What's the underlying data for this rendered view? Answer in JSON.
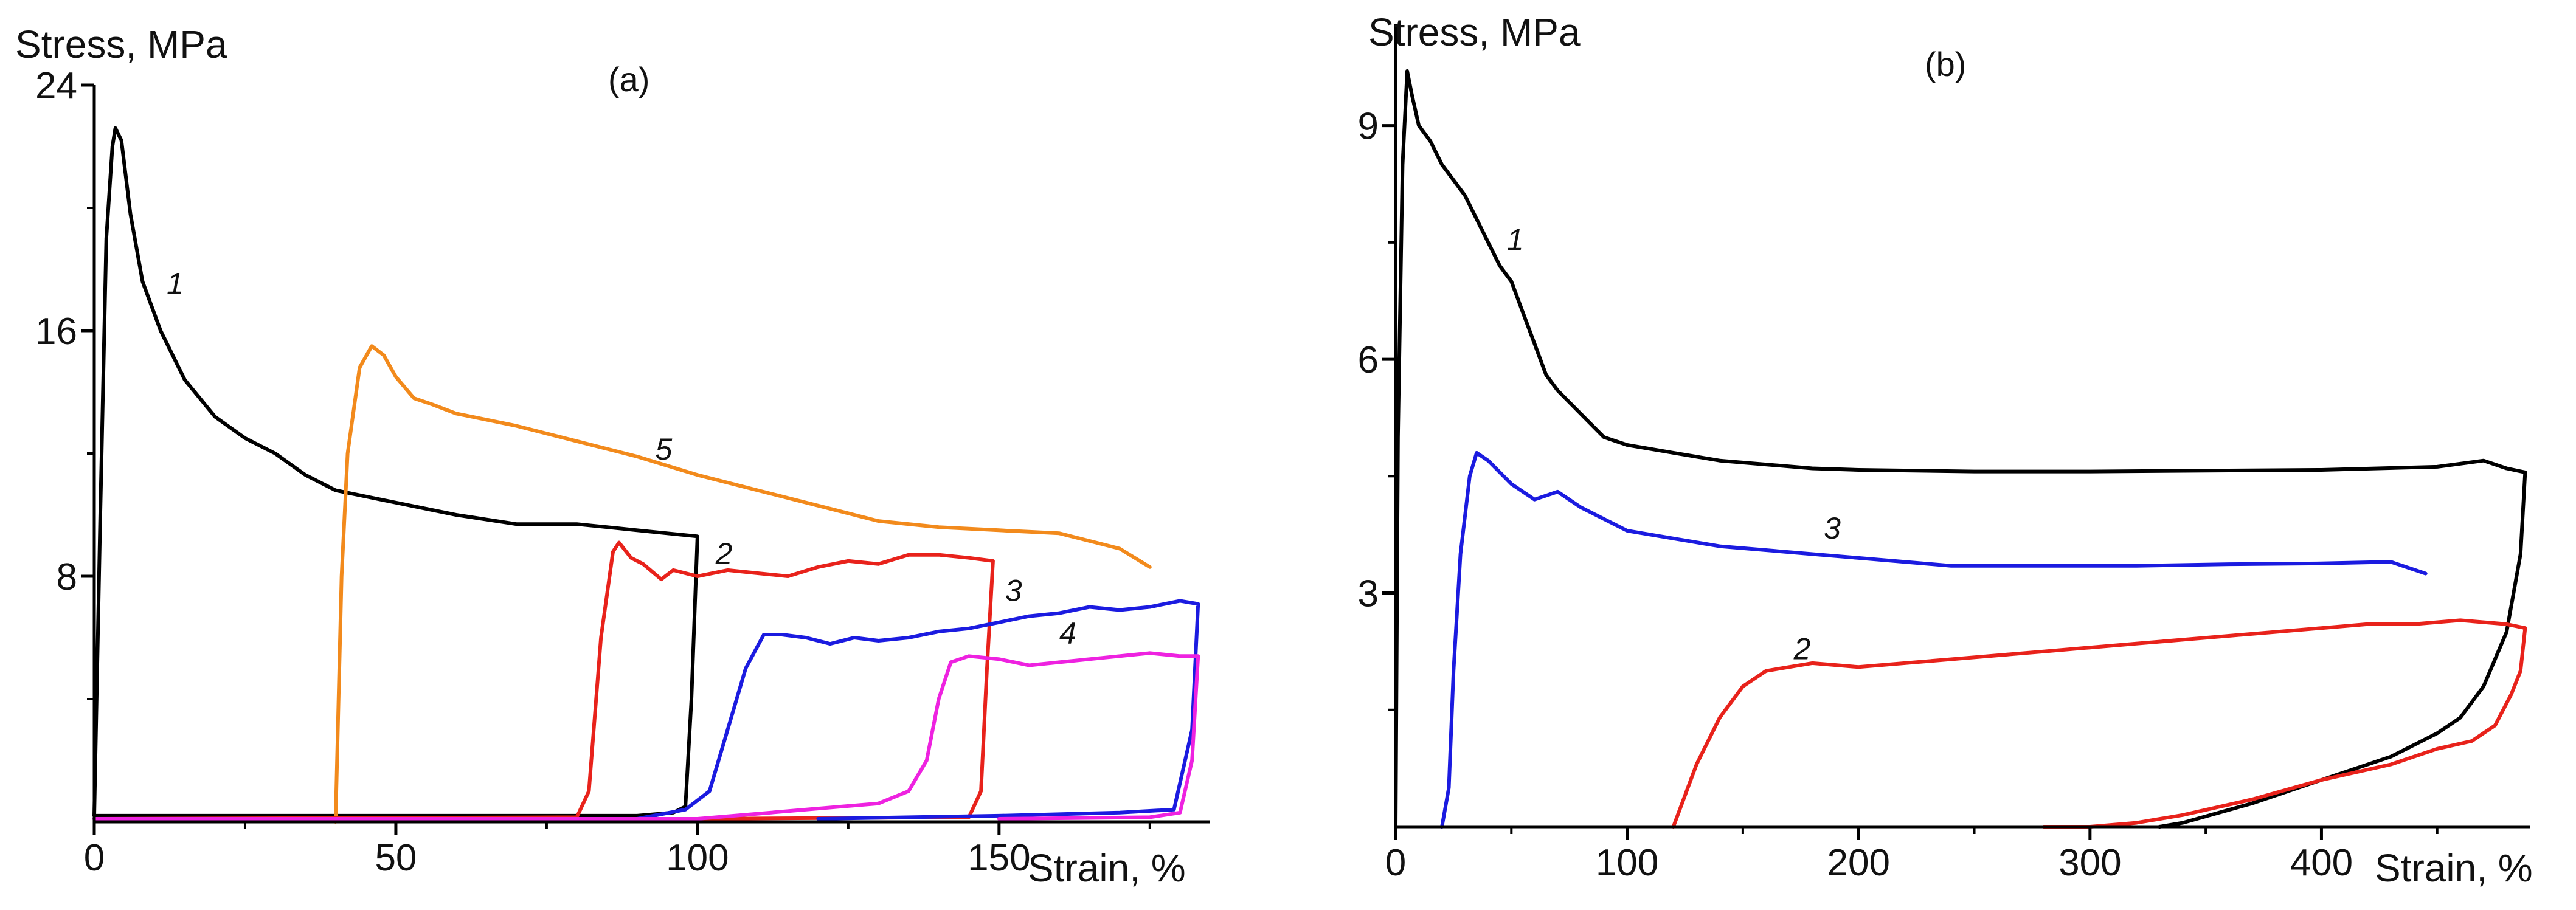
{
  "chart_data": [
    {
      "type": "line",
      "panel_label": "(a)",
      "ylabel": "Stress, MPa",
      "xlabel": "Strain, %",
      "xlim": [
        0,
        185
      ],
      "ylim": [
        0,
        24
      ],
      "xticks": [
        0,
        50,
        100,
        150
      ],
      "yticks": [
        8,
        16,
        24
      ],
      "series": [
        {
          "name": "1",
          "color": "#000000",
          "label_at": [
            12,
            17.2
          ],
          "points": [
            [
              0,
              0.2
            ],
            [
              1,
              10
            ],
            [
              2,
              19
            ],
            [
              3,
              22
            ],
            [
              3.5,
              22.6
            ],
            [
              4.5,
              22.2
            ],
            [
              6,
              19.8
            ],
            [
              8,
              17.6
            ],
            [
              11,
              16
            ],
            [
              15,
              14.4
            ],
            [
              20,
              13.2
            ],
            [
              25,
              12.5
            ],
            [
              30,
              12
            ],
            [
              35,
              11.3
            ],
            [
              40,
              10.8
            ],
            [
              50,
              10.4
            ],
            [
              60,
              10
            ],
            [
              70,
              9.7
            ],
            [
              80,
              9.7
            ],
            [
              85,
              9.6
            ],
            [
              90,
              9.5
            ],
            [
              95,
              9.4
            ],
            [
              100,
              9.3
            ],
            [
              99,
              4
            ],
            [
              98,
              0.5
            ],
            [
              96,
              0.3
            ],
            [
              90,
              0.2
            ],
            [
              50,
              0.2
            ],
            [
              0,
              0.2
            ]
          ]
        },
        {
          "name": "5",
          "color": "#f28a1c",
          "label_at": [
            93,
            11.8
          ],
          "points": [
            [
              40,
              0
            ],
            [
              41,
              8
            ],
            [
              42,
              12
            ],
            [
              44,
              14.8
            ],
            [
              46,
              15.5
            ],
            [
              48,
              15.2
            ],
            [
              50,
              14.5
            ],
            [
              53,
              13.8
            ],
            [
              56,
              13.6
            ],
            [
              60,
              13.3
            ],
            [
              70,
              12.9
            ],
            [
              80,
              12.4
            ],
            [
              90,
              11.9
            ],
            [
              100,
              11.3
            ],
            [
              110,
              10.8
            ],
            [
              120,
              10.3
            ],
            [
              130,
              9.8
            ],
            [
              140,
              9.6
            ],
            [
              150,
              9.5
            ],
            [
              160,
              9.4
            ],
            [
              170,
              8.9
            ],
            [
              175,
              8.3
            ]
          ]
        },
        {
          "name": "2",
          "color": "#e8221b",
          "label_at": [
            103,
            8.4
          ],
          "points": [
            [
              0,
              0.1
            ],
            [
              80,
              0.15
            ],
            [
              82,
              1
            ],
            [
              84,
              6
            ],
            [
              86,
              8.8
            ],
            [
              87,
              9.1
            ],
            [
              89,
              8.6
            ],
            [
              91,
              8.4
            ],
            [
              94,
              7.9
            ],
            [
              96,
              8.2
            ],
            [
              100,
              8.0
            ],
            [
              105,
              8.2
            ],
            [
              110,
              8.1
            ],
            [
              115,
              8.0
            ],
            [
              120,
              8.3
            ],
            [
              125,
              8.5
            ],
            [
              130,
              8.4
            ],
            [
              135,
              8.7
            ],
            [
              140,
              8.7
            ],
            [
              145,
              8.6
            ],
            [
              149,
              8.5
            ],
            [
              148,
              5
            ],
            [
              147,
              1
            ],
            [
              145,
              0.15
            ],
            [
              100,
              0.1
            ]
          ]
        },
        {
          "name": "3",
          "color": "#1b1be0",
          "label_at": [
            151,
            7.2
          ],
          "points": [
            [
              0,
              0.1
            ],
            [
              90,
              0.1
            ],
            [
              98,
              0.4
            ],
            [
              102,
              1
            ],
            [
              105,
              3
            ],
            [
              108,
              5
            ],
            [
              111,
              6.1
            ],
            [
              114,
              6.1
            ],
            [
              118,
              6.0
            ],
            [
              122,
              5.8
            ],
            [
              126,
              6.0
            ],
            [
              130,
              5.9
            ],
            [
              135,
              6.0
            ],
            [
              140,
              6.2
            ],
            [
              145,
              6.3
            ],
            [
              150,
              6.5
            ],
            [
              155,
              6.7
            ],
            [
              160,
              6.8
            ],
            [
              165,
              7.0
            ],
            [
              170,
              6.9
            ],
            [
              175,
              7.0
            ],
            [
              180,
              7.2
            ],
            [
              183,
              7.1
            ],
            [
              182,
              3
            ],
            [
              179,
              0.4
            ],
            [
              170,
              0.3
            ],
            [
              150,
              0.2
            ],
            [
              120,
              0.1
            ]
          ]
        },
        {
          "name": "4",
          "color": "#ee22e0",
          "label_at": [
            160,
            5.8
          ],
          "points": [
            [
              0,
              0.1
            ],
            [
              100,
              0.1
            ],
            [
              130,
              0.6
            ],
            [
              135,
              1.0
            ],
            [
              138,
              2
            ],
            [
              140,
              4
            ],
            [
              142,
              5.2
            ],
            [
              145,
              5.4
            ],
            [
              150,
              5.3
            ],
            [
              155,
              5.1
            ],
            [
              160,
              5.2
            ],
            [
              165,
              5.3
            ],
            [
              170,
              5.4
            ],
            [
              175,
              5.5
            ],
            [
              180,
              5.4
            ],
            [
              183,
              5.4
            ],
            [
              182,
              2
            ],
            [
              180,
              0.3
            ],
            [
              175,
              0.15
            ],
            [
              150,
              0.1
            ]
          ]
        }
      ]
    },
    {
      "type": "line",
      "panel_label": "(b)",
      "ylabel": "Stress, MPa",
      "xlabel": "Strain, %",
      "xlim": [
        0,
        490
      ],
      "ylim": [
        0,
        10.3
      ],
      "xticks": [
        0,
        100,
        200,
        300,
        400
      ],
      "yticks": [
        3,
        6,
        9
      ],
      "series": [
        {
          "name": "1",
          "color": "#000000",
          "label_at": [
            48,
            7.4
          ],
          "points": [
            [
              0,
              0
            ],
            [
              1,
              5
            ],
            [
              3,
              8.5
            ],
            [
              5,
              9.7
            ],
            [
              7,
              9.4
            ],
            [
              10,
              9
            ],
            [
              15,
              8.8
            ],
            [
              20,
              8.5
            ],
            [
              25,
              8.3
            ],
            [
              30,
              8.1
            ],
            [
              35,
              7.8
            ],
            [
              40,
              7.5
            ],
            [
              45,
              7.2
            ],
            [
              50,
              7.0
            ],
            [
              55,
              6.6
            ],
            [
              60,
              6.2
            ],
            [
              65,
              5.8
            ],
            [
              70,
              5.6
            ],
            [
              80,
              5.3
            ],
            [
              90,
              5.0
            ],
            [
              100,
              4.9
            ],
            [
              120,
              4.8
            ],
            [
              140,
              4.7
            ],
            [
              160,
              4.65
            ],
            [
              180,
              4.6
            ],
            [
              200,
              4.58
            ],
            [
              250,
              4.56
            ],
            [
              300,
              4.56
            ],
            [
              350,
              4.57
            ],
            [
              400,
              4.58
            ],
            [
              450,
              4.62
            ],
            [
              470,
              4.7
            ],
            [
              480,
              4.6
            ],
            [
              488,
              4.55
            ],
            [
              486,
              3.5
            ],
            [
              480,
              2.5
            ],
            [
              470,
              1.8
            ],
            [
              460,
              1.4
            ],
            [
              450,
              1.2
            ],
            [
              430,
              0.9
            ],
            [
              400,
              0.6
            ],
            [
              370,
              0.3
            ],
            [
              340,
              0.05
            ],
            [
              330,
              0
            ]
          ]
        },
        {
          "name": "3",
          "color": "#1b1be0",
          "label_at": [
            185,
            3.7
          ],
          "points": [
            [
              20,
              0
            ],
            [
              23,
              0.5
            ],
            [
              25,
              2
            ],
            [
              28,
              3.5
            ],
            [
              32,
              4.5
            ],
            [
              35,
              4.8
            ],
            [
              40,
              4.7
            ],
            [
              50,
              4.4
            ],
            [
              60,
              4.2
            ],
            [
              70,
              4.3
            ],
            [
              80,
              4.1
            ],
            [
              100,
              3.8
            ],
            [
              120,
              3.7
            ],
            [
              140,
              3.6
            ],
            [
              160,
              3.55
            ],
            [
              180,
              3.5
            ],
            [
              200,
              3.45
            ],
            [
              240,
              3.35
            ],
            [
              280,
              3.35
            ],
            [
              320,
              3.35
            ],
            [
              360,
              3.37
            ],
            [
              400,
              3.38
            ],
            [
              430,
              3.4
            ],
            [
              445,
              3.25
            ]
          ]
        },
        {
          "name": "2",
          "color": "#e8221b",
          "label_at": [
            172,
            2.15
          ],
          "points": [
            [
              120,
              0
            ],
            [
              130,
              0.8
            ],
            [
              140,
              1.4
            ],
            [
              150,
              1.8
            ],
            [
              160,
              2.0
            ],
            [
              180,
              2.1
            ],
            [
              200,
              2.05
            ],
            [
              220,
              2.1
            ],
            [
              240,
              2.15
            ],
            [
              260,
              2.2
            ],
            [
              280,
              2.25
            ],
            [
              300,
              2.3
            ],
            [
              320,
              2.35
            ],
            [
              340,
              2.4
            ],
            [
              360,
              2.45
            ],
            [
              380,
              2.5
            ],
            [
              400,
              2.55
            ],
            [
              420,
              2.6
            ],
            [
              440,
              2.6
            ],
            [
              460,
              2.65
            ],
            [
              480,
              2.6
            ],
            [
              488,
              2.55
            ],
            [
              486,
              2.0
            ],
            [
              482,
              1.7
            ],
            [
              475,
              1.3
            ],
            [
              465,
              1.1
            ],
            [
              450,
              1.0
            ],
            [
              430,
              0.8
            ],
            [
              400,
              0.6
            ],
            [
              370,
              0.35
            ],
            [
              340,
              0.15
            ],
            [
              320,
              0.05
            ],
            [
              300,
              0
            ],
            [
              280,
              0
            ]
          ]
        }
      ]
    }
  ]
}
